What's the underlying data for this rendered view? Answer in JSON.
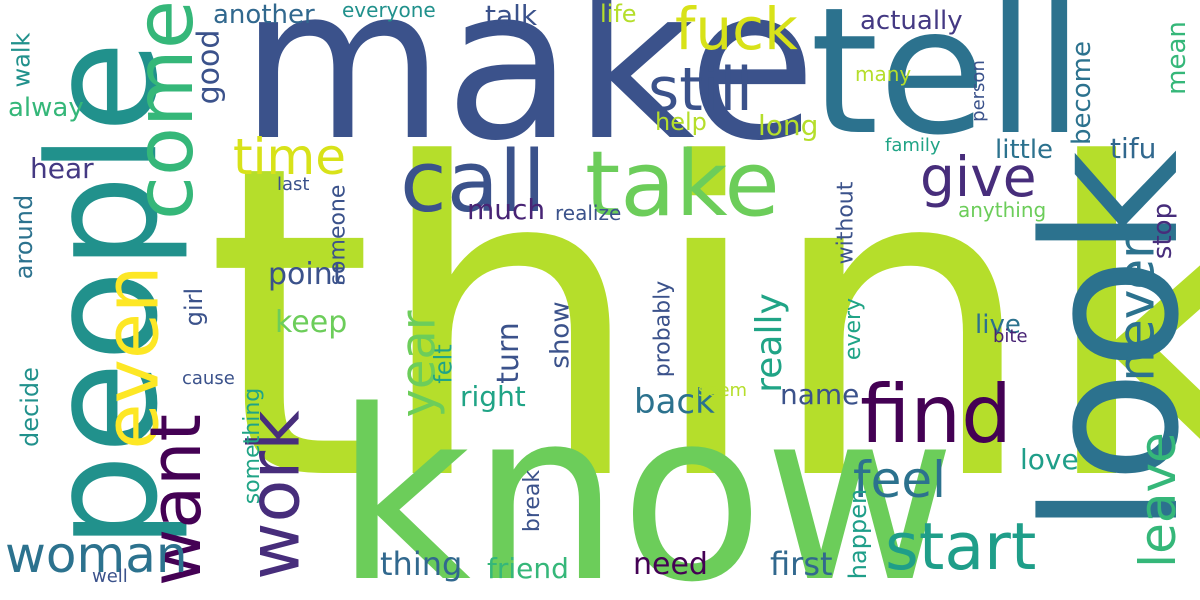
{
  "words": [
    {
      "text": "think",
      "color": "#b5de2b"
    },
    {
      "text": "know",
      "color": "#6ccd5a"
    },
    {
      "text": "make",
      "color": "#3b528b"
    },
    {
      "text": "people",
      "color": "#21918c"
    },
    {
      "text": "tell",
      "color": "#2c728e"
    },
    {
      "text": "look",
      "color": "#2c728e"
    },
    {
      "text": "take",
      "color": "#6ccd5a"
    },
    {
      "text": "call",
      "color": "#3b528b"
    },
    {
      "text": "come",
      "color": "#35b779"
    },
    {
      "text": "even",
      "color": "#fde725"
    },
    {
      "text": "want",
      "color": "#440154"
    },
    {
      "text": "work",
      "color": "#472d7b"
    },
    {
      "text": "find",
      "color": "#440154"
    },
    {
      "text": "start",
      "color": "#1f9e89"
    },
    {
      "text": "fuck",
      "color": "#d8e219"
    },
    {
      "text": "still",
      "color": "#3b528b"
    },
    {
      "text": "time",
      "color": "#d8e219"
    },
    {
      "text": "give",
      "color": "#472d7b"
    },
    {
      "text": "woman",
      "color": "#2c728e"
    },
    {
      "text": "feel",
      "color": "#2c728e"
    },
    {
      "text": "never",
      "color": "#2c728e"
    },
    {
      "text": "leave",
      "color": "#35b779"
    },
    {
      "text": "year",
      "color": "#6ccd5a"
    },
    {
      "text": "tifu",
      "color": "#31688e"
    },
    {
      "text": "actually",
      "color": "#443983"
    },
    {
      "text": "really",
      "color": "#20a486"
    },
    {
      "text": "back",
      "color": "#2c728e"
    },
    {
      "text": "first",
      "color": "#31688e"
    },
    {
      "text": "need",
      "color": "#440154"
    },
    {
      "text": "thing",
      "color": "#31688e"
    },
    {
      "text": "friend",
      "color": "#35b779"
    },
    {
      "text": "point",
      "color": "#3b528b"
    },
    {
      "text": "keep",
      "color": "#6ccd5a"
    },
    {
      "text": "hear",
      "color": "#443983"
    },
    {
      "text": "much",
      "color": "#482475"
    },
    {
      "text": "talk",
      "color": "#3b528b"
    },
    {
      "text": "good",
      "color": "#3b528b"
    },
    {
      "text": "another",
      "color": "#31688e"
    },
    {
      "text": "everyone",
      "color": "#21918c"
    },
    {
      "text": "life",
      "color": "#b5de2b"
    },
    {
      "text": "help",
      "color": "#b5de2b"
    },
    {
      "text": "long",
      "color": "#b5de2b"
    },
    {
      "text": "become",
      "color": "#2c728e"
    },
    {
      "text": "mean",
      "color": "#35b779"
    },
    {
      "text": "little",
      "color": "#2c728e"
    },
    {
      "text": "stop",
      "color": "#472d7b"
    },
    {
      "text": "live",
      "color": "#2c728e"
    },
    {
      "text": "show",
      "color": "#3b528b"
    },
    {
      "text": "turn",
      "color": "#3b528b"
    },
    {
      "text": "right",
      "color": "#20a486"
    },
    {
      "text": "name",
      "color": "#3b528b"
    },
    {
      "text": "love",
      "color": "#1f9e89"
    },
    {
      "text": "happen",
      "color": "#1f9e89"
    },
    {
      "text": "alway",
      "color": "#35b779"
    },
    {
      "text": "walk",
      "color": "#21918c"
    },
    {
      "text": "around",
      "color": "#2c728e"
    },
    {
      "text": "decide",
      "color": "#21918c"
    },
    {
      "text": "someone",
      "color": "#3b528b"
    },
    {
      "text": "something",
      "color": "#20a486"
    },
    {
      "text": "realize",
      "color": "#3b528b"
    },
    {
      "text": "girl",
      "color": "#3b528b"
    },
    {
      "text": "felt",
      "color": "#20a486"
    },
    {
      "text": "probably",
      "color": "#3b528b"
    },
    {
      "text": "without",
      "color": "#3b528b"
    },
    {
      "text": "every",
      "color": "#20a486"
    },
    {
      "text": "many",
      "color": "#b5de2b"
    },
    {
      "text": "family",
      "color": "#20a486"
    },
    {
      "text": "person",
      "color": "#3b528b"
    },
    {
      "text": "anything",
      "color": "#6ccd5a"
    },
    {
      "text": "break",
      "color": "#3b528b"
    },
    {
      "text": "seem",
      "color": "#b5de2b"
    },
    {
      "text": "bite",
      "color": "#482475"
    },
    {
      "text": "last",
      "color": "#3b528b"
    },
    {
      "text": "cause",
      "color": "#3b528b"
    },
    {
      "text": "well",
      "color": "#3b528b"
    }
  ]
}
